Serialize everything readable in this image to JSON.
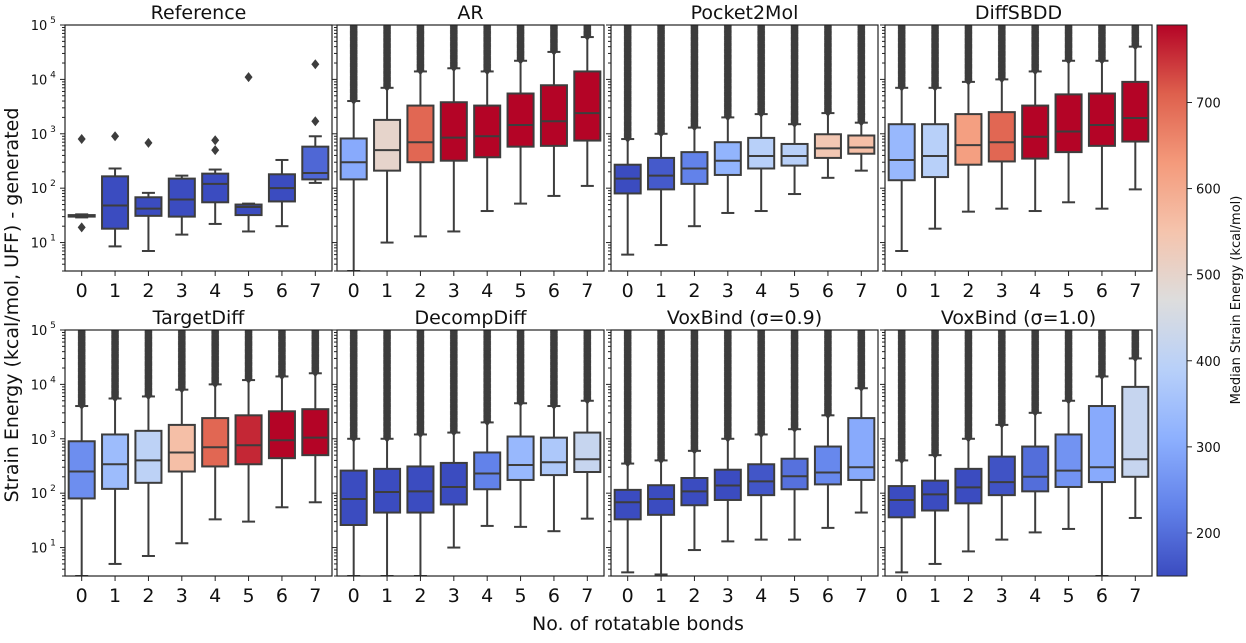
{
  "chart_data": {
    "type": "box",
    "suptitle_ylabel": "Strain Energy (kcal/mol, UFF) - generated",
    "suptitle_xlabel": "No. of rotatable bonds",
    "categories": [
      "0",
      "1",
      "2",
      "3",
      "4",
      "5",
      "6",
      "7"
    ],
    "yscale": "log",
    "ylim": [
      3,
      100000
    ],
    "y_ticks": [
      {
        "value": 10,
        "base": "10",
        "exp": "1"
      },
      {
        "value": 100,
        "base": "10",
        "exp": "2"
      },
      {
        "value": 1000,
        "base": "10",
        "exp": "3"
      },
      {
        "value": 10000,
        "base": "10",
        "exp": "4"
      },
      {
        "value": 100000,
        "base": "10",
        "exp": "5"
      }
    ],
    "colorbar": {
      "label": "Median Strain Energy (kcal/mol)",
      "range": [
        150,
        790
      ],
      "ticks": [
        "200",
        "300",
        "400",
        "500",
        "600",
        "700"
      ],
      "tick_values": [
        200,
        300,
        400,
        500,
        600,
        700
      ],
      "colormap": "coolwarm"
    },
    "panels": [
      {
        "title": "Reference",
        "dense_fliers": false,
        "boxes": [
          {
            "q1": 30,
            "med": 31,
            "q3": 32,
            "lo": 29,
            "hi": 33,
            "fliers": [
              19,
              800
            ]
          },
          {
            "q1": 18,
            "med": 48,
            "q3": 165,
            "lo": 8.5,
            "hi": 230,
            "fliers": [
              900
            ]
          },
          {
            "q1": 31,
            "med": 42,
            "q3": 68,
            "lo": 7,
            "hi": 82,
            "fliers": [
              680
            ]
          },
          {
            "q1": 30,
            "med": 62,
            "q3": 150,
            "lo": 14,
            "hi": 170,
            "fliers": []
          },
          {
            "q1": 55,
            "med": 120,
            "q3": 185,
            "lo": 22,
            "hi": 220,
            "fliers": [
              500,
              760
            ]
          },
          {
            "q1": 32,
            "med": 45,
            "q3": 50,
            "lo": 16,
            "hi": 52,
            "fliers": [
              11000
            ]
          },
          {
            "q1": 57,
            "med": 100,
            "q3": 180,
            "lo": 20,
            "hi": 330,
            "fliers": []
          },
          {
            "q1": 145,
            "med": 190,
            "q3": 580,
            "lo": 125,
            "hi": 900,
            "fliers": [
              1700,
              19000
            ]
          }
        ]
      },
      {
        "title": "AR",
        "dense_fliers": true,
        "boxes": [
          {
            "q1": 145,
            "med": 300,
            "q3": 820,
            "lo": 3,
            "hi": 4000
          },
          {
            "q1": 210,
            "med": 500,
            "q3": 1800,
            "lo": 10,
            "hi": 7000
          },
          {
            "q1": 300,
            "med": 700,
            "q3": 3300,
            "lo": 13,
            "hi": 14000
          },
          {
            "q1": 320,
            "med": 850,
            "q3": 3800,
            "lo": 16,
            "hi": 16000
          },
          {
            "q1": 370,
            "med": 900,
            "q3": 3300,
            "lo": 38,
            "hi": 14000
          },
          {
            "q1": 580,
            "med": 1450,
            "q3": 5500,
            "lo": 52,
            "hi": 22000
          },
          {
            "q1": 600,
            "med": 1700,
            "q3": 7800,
            "lo": 72,
            "hi": 32000
          },
          {
            "q1": 750,
            "med": 2400,
            "q3": 14000,
            "lo": 110,
            "hi": 60000
          }
        ]
      },
      {
        "title": "Pocket2Mol",
        "dense_fliers": true,
        "boxes": [
          {
            "q1": 80,
            "med": 150,
            "q3": 270,
            "lo": 6,
            "hi": 800
          },
          {
            "q1": 95,
            "med": 170,
            "q3": 360,
            "lo": 9,
            "hi": 1000
          },
          {
            "q1": 120,
            "med": 230,
            "q3": 460,
            "lo": 20,
            "hi": 1300
          },
          {
            "q1": 175,
            "med": 320,
            "q3": 700,
            "lo": 35,
            "hi": 2000
          },
          {
            "q1": 230,
            "med": 390,
            "q3": 840,
            "lo": 38,
            "hi": 2300
          },
          {
            "q1": 260,
            "med": 390,
            "q3": 650,
            "lo": 78,
            "hi": 1500
          },
          {
            "q1": 360,
            "med": 540,
            "q3": 980,
            "lo": 155,
            "hi": 2400
          },
          {
            "q1": 430,
            "med": 560,
            "q3": 930,
            "lo": 210,
            "hi": 1600,
            "fliers": [
              2300,
              11000
            ]
          }
        ]
      },
      {
        "title": "DiffSBDD",
        "dense_fliers": true,
        "boxes": [
          {
            "q1": 140,
            "med": 330,
            "q3": 1500,
            "lo": 7,
            "hi": 7000
          },
          {
            "q1": 160,
            "med": 390,
            "q3": 1500,
            "lo": 18,
            "hi": 7000
          },
          {
            "q1": 270,
            "med": 620,
            "q3": 2300,
            "lo": 37,
            "hi": 9000
          },
          {
            "q1": 310,
            "med": 700,
            "q3": 2500,
            "lo": 42,
            "hi": 10000
          },
          {
            "q1": 350,
            "med": 880,
            "q3": 3300,
            "lo": 38,
            "hi": 14000
          },
          {
            "q1": 460,
            "med": 1100,
            "q3": 5300,
            "lo": 55,
            "hi": 22000
          },
          {
            "q1": 600,
            "med": 1450,
            "q3": 5500,
            "lo": 42,
            "hi": 22000
          },
          {
            "q1": 720,
            "med": 1950,
            "q3": 9000,
            "lo": 95,
            "hi": 40000
          }
        ]
      },
      {
        "title": "TargetDiff",
        "dense_fliers": true,
        "boxes": [
          {
            "q1": 80,
            "med": 250,
            "q3": 900,
            "lo": 3,
            "hi": 4000
          },
          {
            "q1": 120,
            "med": 340,
            "q3": 1200,
            "lo": 5,
            "hi": 5500
          },
          {
            "q1": 155,
            "med": 400,
            "q3": 1400,
            "lo": 7,
            "hi": 6000
          },
          {
            "q1": 250,
            "med": 560,
            "q3": 1800,
            "lo": 12,
            "hi": 8000
          },
          {
            "q1": 310,
            "med": 700,
            "q3": 2400,
            "lo": 33,
            "hi": 10000
          },
          {
            "q1": 340,
            "med": 760,
            "q3": 2700,
            "lo": 30,
            "hi": 12000
          },
          {
            "q1": 440,
            "med": 940,
            "q3": 3200,
            "lo": 55,
            "hi": 14000
          },
          {
            "q1": 500,
            "med": 1050,
            "q3": 3500,
            "lo": 68,
            "hi": 16000
          }
        ]
      },
      {
        "title": "DecompDiff",
        "dense_fliers": true,
        "boxes": [
          {
            "q1": 26,
            "med": 78,
            "q3": 260,
            "lo": 3,
            "hi": 1000
          },
          {
            "q1": 44,
            "med": 105,
            "q3": 280,
            "lo": 3,
            "hi": 1000
          },
          {
            "q1": 44,
            "med": 108,
            "q3": 310,
            "lo": 3,
            "hi": 1200
          },
          {
            "q1": 62,
            "med": 130,
            "q3": 360,
            "lo": 10,
            "hi": 1300
          },
          {
            "q1": 118,
            "med": 230,
            "q3": 560,
            "lo": 25,
            "hi": 2000
          },
          {
            "q1": 175,
            "med": 330,
            "q3": 1100,
            "lo": 24,
            "hi": 4500
          },
          {
            "q1": 215,
            "med": 370,
            "q3": 1050,
            "lo": 20,
            "hi": 4000
          },
          {
            "q1": 245,
            "med": 420,
            "q3": 1300,
            "lo": 34,
            "hi": 5000
          }
        ]
      },
      {
        "title": "VoxBind (σ=0.9)",
        "dense_fliers": true,
        "boxes": [
          {
            "q1": 33,
            "med": 68,
            "q3": 115,
            "lo": 3.5,
            "hi": 350
          },
          {
            "q1": 40,
            "med": 78,
            "q3": 140,
            "lo": 3.2,
            "hi": 400
          },
          {
            "q1": 60,
            "med": 108,
            "q3": 190,
            "lo": 9,
            "hi": 600
          },
          {
            "q1": 75,
            "med": 138,
            "q3": 270,
            "lo": 13,
            "hi": 1000
          },
          {
            "q1": 92,
            "med": 165,
            "q3": 340,
            "lo": 14,
            "hi": 1200
          },
          {
            "q1": 118,
            "med": 205,
            "q3": 430,
            "lo": 14,
            "hi": 1500
          },
          {
            "q1": 145,
            "med": 240,
            "q3": 720,
            "lo": 23,
            "hi": 2700
          },
          {
            "q1": 175,
            "med": 300,
            "q3": 2400,
            "lo": 44,
            "hi": 8500
          }
        ]
      },
      {
        "title": "VoxBind (σ=1.0)",
        "dense_fliers": true,
        "boxes": [
          {
            "q1": 36,
            "med": 75,
            "q3": 135,
            "lo": 3.5,
            "hi": 400
          },
          {
            "q1": 48,
            "med": 95,
            "q3": 170,
            "lo": 5,
            "hi": 500
          },
          {
            "q1": 65,
            "med": 128,
            "q3": 280,
            "lo": 8.5,
            "hi": 1000
          },
          {
            "q1": 92,
            "med": 160,
            "q3": 470,
            "lo": 14,
            "hi": 1800
          },
          {
            "q1": 108,
            "med": 200,
            "q3": 720,
            "lo": 19,
            "hi": 3000
          },
          {
            "q1": 130,
            "med": 260,
            "q3": 1200,
            "lo": 22,
            "hi": 5000
          },
          {
            "q1": 160,
            "med": 300,
            "q3": 4000,
            "lo": 3,
            "hi": 14000
          },
          {
            "q1": 200,
            "med": 420,
            "q3": 9000,
            "lo": 35,
            "hi": 30000
          }
        ]
      }
    ]
  }
}
